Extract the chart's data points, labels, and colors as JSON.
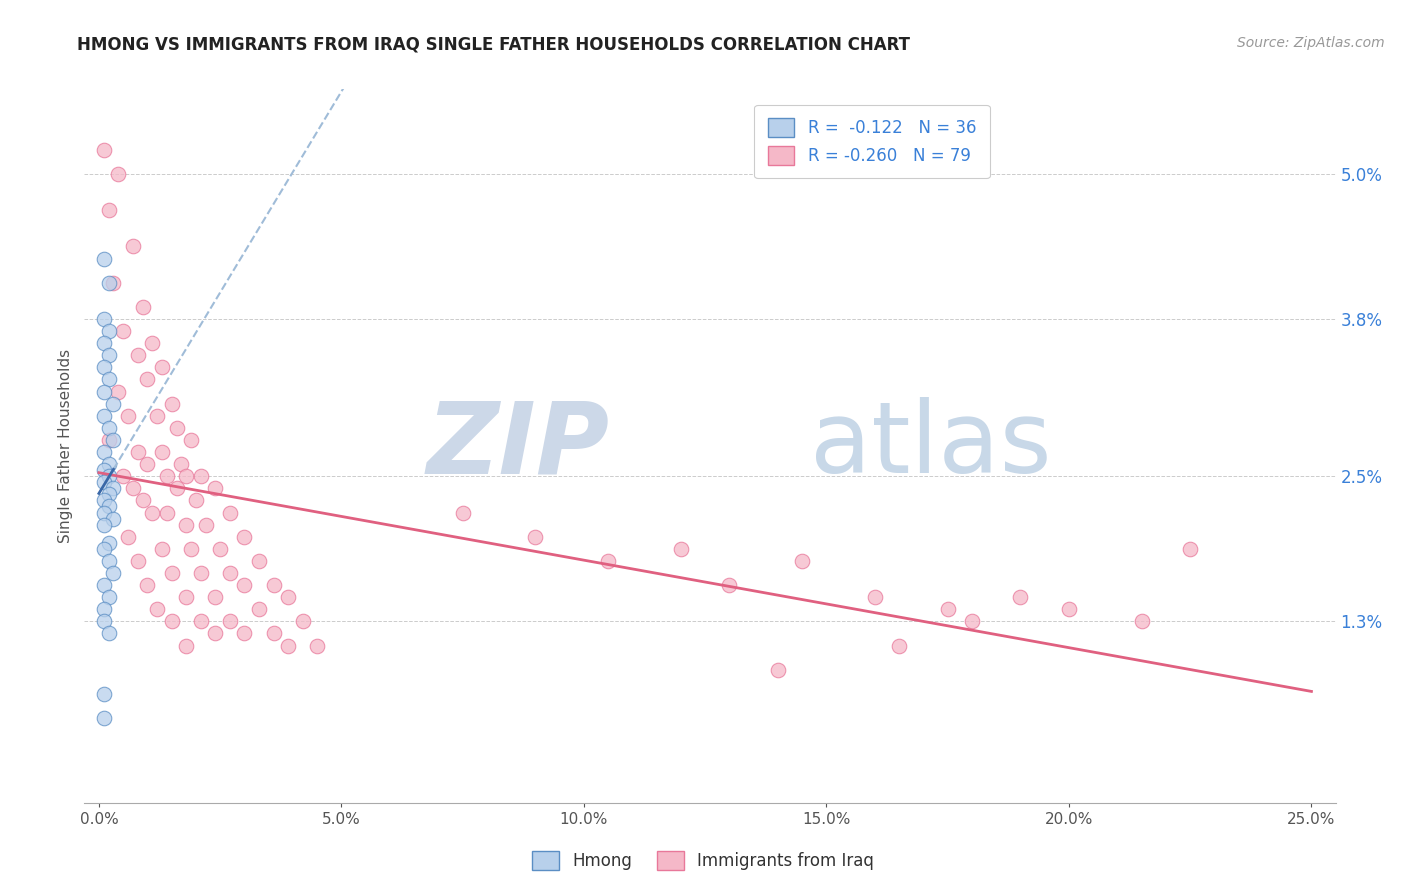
{
  "title": "HMONG VS IMMIGRANTS FROM IRAQ SINGLE FATHER HOUSEHOLDS CORRELATION CHART",
  "source": "Source: ZipAtlas.com",
  "ylabel": "Single Father Households",
  "ytick_labels": [
    "1.3%",
    "2.5%",
    "3.8%",
    "5.0%"
  ],
  "ytick_values": [
    0.013,
    0.025,
    0.038,
    0.05
  ],
  "xtick_values": [
    0.0,
    0.05,
    0.1,
    0.15,
    0.2,
    0.25
  ],
  "xtick_labels": [
    "0.0%",
    "5.0%",
    "10.0%",
    "15.0%",
    "20.0%",
    "25.0%"
  ],
  "xlim": [
    -0.003,
    0.255
  ],
  "ylim": [
    -0.002,
    0.057
  ],
  "legend_label1": "Hmong",
  "legend_label2": "Immigrants from Iraq",
  "r1": "-0.122",
  "n1": "36",
  "r2": "-0.260",
  "n2": "79",
  "color_hmong_fill": "#b8d0eb",
  "color_hmong_edge": "#5b8ec4",
  "color_iraq_fill": "#f5b8c8",
  "color_iraq_edge": "#e8789a",
  "color_hmong_line": "#3a68a8",
  "color_iraq_line": "#e06080",
  "color_hmong_dashed": "#a0bcd8",
  "watermark_zip_color": "#ccd8e8",
  "watermark_atlas_color": "#c8d8e8",
  "background": "#ffffff",
  "grid_color": "#cccccc",
  "title_color": "#222222",
  "axis_label_color": "#555555",
  "right_tick_color": "#3a80d8",
  "bottom_tick_color": "#555555",
  "hmong_points": [
    [
      0.001,
      0.043
    ],
    [
      0.002,
      0.041
    ],
    [
      0.001,
      0.038
    ],
    [
      0.002,
      0.037
    ],
    [
      0.001,
      0.036
    ],
    [
      0.002,
      0.035
    ],
    [
      0.001,
      0.034
    ],
    [
      0.002,
      0.033
    ],
    [
      0.001,
      0.032
    ],
    [
      0.003,
      0.031
    ],
    [
      0.001,
      0.03
    ],
    [
      0.002,
      0.029
    ],
    [
      0.003,
      0.028
    ],
    [
      0.001,
      0.027
    ],
    [
      0.002,
      0.026
    ],
    [
      0.001,
      0.0255
    ],
    [
      0.002,
      0.025
    ],
    [
      0.001,
      0.0245
    ],
    [
      0.003,
      0.024
    ],
    [
      0.002,
      0.0235
    ],
    [
      0.001,
      0.023
    ],
    [
      0.002,
      0.0225
    ],
    [
      0.001,
      0.022
    ],
    [
      0.003,
      0.0215
    ],
    [
      0.001,
      0.021
    ],
    [
      0.002,
      0.0195
    ],
    [
      0.001,
      0.019
    ],
    [
      0.002,
      0.018
    ],
    [
      0.003,
      0.017
    ],
    [
      0.001,
      0.016
    ],
    [
      0.002,
      0.015
    ],
    [
      0.001,
      0.014
    ],
    [
      0.001,
      0.013
    ],
    [
      0.002,
      0.012
    ],
    [
      0.001,
      0.007
    ],
    [
      0.001,
      0.005
    ]
  ],
  "iraq_points": [
    [
      0.001,
      0.052
    ],
    [
      0.004,
      0.05
    ],
    [
      0.002,
      0.047
    ],
    [
      0.007,
      0.044
    ],
    [
      0.003,
      0.041
    ],
    [
      0.009,
      0.039
    ],
    [
      0.005,
      0.037
    ],
    [
      0.011,
      0.036
    ],
    [
      0.008,
      0.035
    ],
    [
      0.013,
      0.034
    ],
    [
      0.01,
      0.033
    ],
    [
      0.004,
      0.032
    ],
    [
      0.015,
      0.031
    ],
    [
      0.012,
      0.03
    ],
    [
      0.006,
      0.03
    ],
    [
      0.016,
      0.029
    ],
    [
      0.002,
      0.028
    ],
    [
      0.019,
      0.028
    ],
    [
      0.008,
      0.027
    ],
    [
      0.013,
      0.027
    ],
    [
      0.017,
      0.026
    ],
    [
      0.01,
      0.026
    ],
    [
      0.021,
      0.025
    ],
    [
      0.005,
      0.025
    ],
    [
      0.018,
      0.025
    ],
    [
      0.014,
      0.025
    ],
    [
      0.007,
      0.024
    ],
    [
      0.024,
      0.024
    ],
    [
      0.016,
      0.024
    ],
    [
      0.02,
      0.023
    ],
    [
      0.009,
      0.023
    ],
    [
      0.014,
      0.022
    ],
    [
      0.027,
      0.022
    ],
    [
      0.011,
      0.022
    ],
    [
      0.022,
      0.021
    ],
    [
      0.018,
      0.021
    ],
    [
      0.03,
      0.02
    ],
    [
      0.006,
      0.02
    ],
    [
      0.025,
      0.019
    ],
    [
      0.019,
      0.019
    ],
    [
      0.013,
      0.019
    ],
    [
      0.033,
      0.018
    ],
    [
      0.008,
      0.018
    ],
    [
      0.027,
      0.017
    ],
    [
      0.021,
      0.017
    ],
    [
      0.015,
      0.017
    ],
    [
      0.036,
      0.016
    ],
    [
      0.01,
      0.016
    ],
    [
      0.03,
      0.016
    ],
    [
      0.024,
      0.015
    ],
    [
      0.018,
      0.015
    ],
    [
      0.039,
      0.015
    ],
    [
      0.012,
      0.014
    ],
    [
      0.033,
      0.014
    ],
    [
      0.027,
      0.013
    ],
    [
      0.021,
      0.013
    ],
    [
      0.042,
      0.013
    ],
    [
      0.015,
      0.013
    ],
    [
      0.036,
      0.012
    ],
    [
      0.03,
      0.012
    ],
    [
      0.024,
      0.012
    ],
    [
      0.045,
      0.011
    ],
    [
      0.018,
      0.011
    ],
    [
      0.039,
      0.011
    ],
    [
      0.075,
      0.022
    ],
    [
      0.09,
      0.02
    ],
    [
      0.105,
      0.018
    ],
    [
      0.12,
      0.019
    ],
    [
      0.13,
      0.016
    ],
    [
      0.145,
      0.018
    ],
    [
      0.16,
      0.015
    ],
    [
      0.175,
      0.014
    ],
    [
      0.19,
      0.015
    ],
    [
      0.215,
      0.013
    ],
    [
      0.225,
      0.019
    ],
    [
      0.2,
      0.014
    ],
    [
      0.18,
      0.013
    ],
    [
      0.165,
      0.011
    ],
    [
      0.14,
      0.009
    ]
  ]
}
